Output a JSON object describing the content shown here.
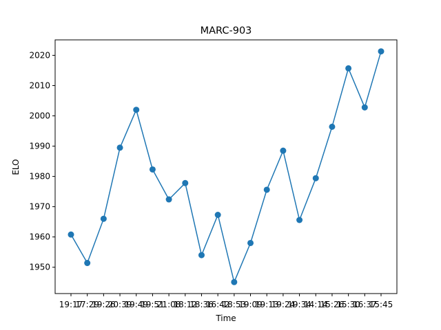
{
  "chart_data": {
    "type": "line",
    "title": "MARC-903",
    "xlabel": "Time",
    "ylabel": "ELO",
    "x": [
      "19:17",
      "17:29",
      "19:26",
      "20:39",
      "19:49",
      "19:51",
      "21:08",
      "18:12",
      "18:36",
      "16:42",
      "18:53",
      "19:09",
      "19:13",
      "19:24",
      "19:34",
      "14:14",
      "15:26",
      "15:30",
      "16:37",
      "15:45"
    ],
    "values": [
      1960.8,
      1951.4,
      1966.0,
      1989.5,
      2002.0,
      1982.3,
      1972.4,
      1977.8,
      1954.0,
      1967.3,
      1945.1,
      1958.0,
      1975.6,
      1988.5,
      1965.6,
      1979.4,
      1996.4,
      2015.7,
      2002.8,
      2021.3
    ],
    "yticks": [
      1950,
      1960,
      1970,
      1980,
      1990,
      2000,
      2010,
      2020
    ],
    "ylim": [
      1941.3,
      2025.1
    ],
    "grid": false,
    "color": "#1f77b4"
  }
}
